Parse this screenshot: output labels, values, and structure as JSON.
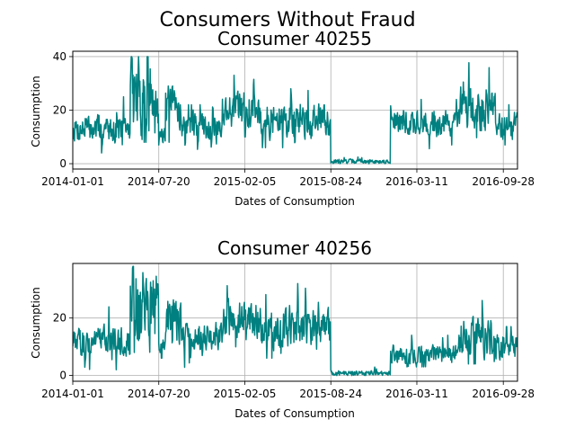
{
  "suptitle": "Consumers Without Fraud",
  "line_color": "#008080",
  "chart_data": [
    {
      "type": "line",
      "title": "Consumer 40255",
      "xlabel": "Dates of Consumption",
      "ylabel": "Consumption",
      "x_ticks": [
        "2014-01-01",
        "2014-07-20",
        "2015-02-05",
        "2015-08-24",
        "2016-03-11",
        "2016-09-28"
      ],
      "y_ticks": [
        0,
        20,
        40
      ],
      "xlim": [
        "2014-01-01",
        "2016-10-31"
      ],
      "ylim": [
        -2,
        42
      ],
      "grid": true,
      "segments": [
        {
          "x": [
            "2014-01-01",
            "2014-05-15"
          ],
          "center": 13,
          "amp": 3,
          "min": 4,
          "max": 25
        },
        {
          "x": [
            "2014-05-15",
            "2014-07-20"
          ],
          "center": 25,
          "amp": 9,
          "min": 8,
          "max": 40
        },
        {
          "x": [
            "2014-07-20",
            "2014-08-05"
          ],
          "center": 11,
          "amp": 2,
          "min": 7,
          "max": 15
        },
        {
          "x": [
            "2014-08-05",
            "2014-09-10"
          ],
          "center": 21,
          "amp": 5,
          "min": 8,
          "max": 29
        },
        {
          "x": [
            "2014-09-10",
            "2014-12-15"
          ],
          "center": 14,
          "amp": 3,
          "min": 0,
          "max": 22
        },
        {
          "x": [
            "2014-12-15",
            "2015-03-15"
          ],
          "center": 20,
          "amp": 4,
          "min": 10,
          "max": 33
        },
        {
          "x": [
            "2015-03-15",
            "2015-08-24"
          ],
          "center": 16,
          "amp": 4,
          "min": 6,
          "max": 28
        },
        {
          "x": [
            "2015-08-24",
            "2016-01-10"
          ],
          "center": 0.8,
          "amp": 0.5,
          "min": 0,
          "max": 3
        },
        {
          "x": [
            "2016-01-10",
            "2016-06-20"
          ],
          "center": 15,
          "amp": 3,
          "min": 5,
          "max": 24
        },
        {
          "x": [
            "2016-06-20",
            "2016-09-10"
          ],
          "center": 21,
          "amp": 5,
          "min": 8,
          "max": 39
        },
        {
          "x": [
            "2016-09-10",
            "2016-10-31"
          ],
          "center": 14,
          "amp": 3,
          "min": 7,
          "max": 22
        }
      ]
    },
    {
      "type": "line",
      "title": "Consumer 40256",
      "xlabel": "Dates of Consumption",
      "ylabel": "Consumption",
      "x_ticks": [
        "2014-01-01",
        "2014-07-20",
        "2015-02-05",
        "2015-08-24",
        "2016-03-11",
        "2016-09-28"
      ],
      "y_ticks": [
        0,
        20
      ],
      "xlim": [
        "2014-01-01",
        "2016-10-31"
      ],
      "ylim": [
        -2,
        39
      ],
      "grid": true,
      "segments": [
        {
          "x": [
            "2014-01-01",
            "2014-05-15"
          ],
          "center": 12,
          "amp": 3,
          "min": 2,
          "max": 25
        },
        {
          "x": [
            "2014-05-15",
            "2014-07-20"
          ],
          "center": 24,
          "amp": 9,
          "min": 8,
          "max": 38
        },
        {
          "x": [
            "2014-07-20",
            "2014-08-05"
          ],
          "center": 10,
          "amp": 2,
          "min": 6,
          "max": 15
        },
        {
          "x": [
            "2014-08-05",
            "2014-09-10"
          ],
          "center": 20,
          "amp": 5,
          "min": 8,
          "max": 29
        },
        {
          "x": [
            "2014-09-10",
            "2014-12-15"
          ],
          "center": 14,
          "amp": 3,
          "min": 0,
          "max": 22
        },
        {
          "x": [
            "2014-12-15",
            "2015-03-15"
          ],
          "center": 20,
          "amp": 4,
          "min": 10,
          "max": 33
        },
        {
          "x": [
            "2015-03-15",
            "2015-08-24"
          ],
          "center": 16,
          "amp": 4,
          "min": 6,
          "max": 32
        },
        {
          "x": [
            "2015-08-24",
            "2016-01-10"
          ],
          "center": 0.8,
          "amp": 0.5,
          "min": 0,
          "max": 3
        },
        {
          "x": [
            "2016-01-10",
            "2016-06-20"
          ],
          "center": 7,
          "amp": 2,
          "min": 3,
          "max": 14
        },
        {
          "x": [
            "2016-06-20",
            "2016-09-10"
          ],
          "center": 13,
          "amp": 4,
          "min": 4,
          "max": 27
        },
        {
          "x": [
            "2016-09-10",
            "2016-10-31"
          ],
          "center": 9,
          "amp": 3,
          "min": 3,
          "max": 17
        }
      ]
    }
  ]
}
